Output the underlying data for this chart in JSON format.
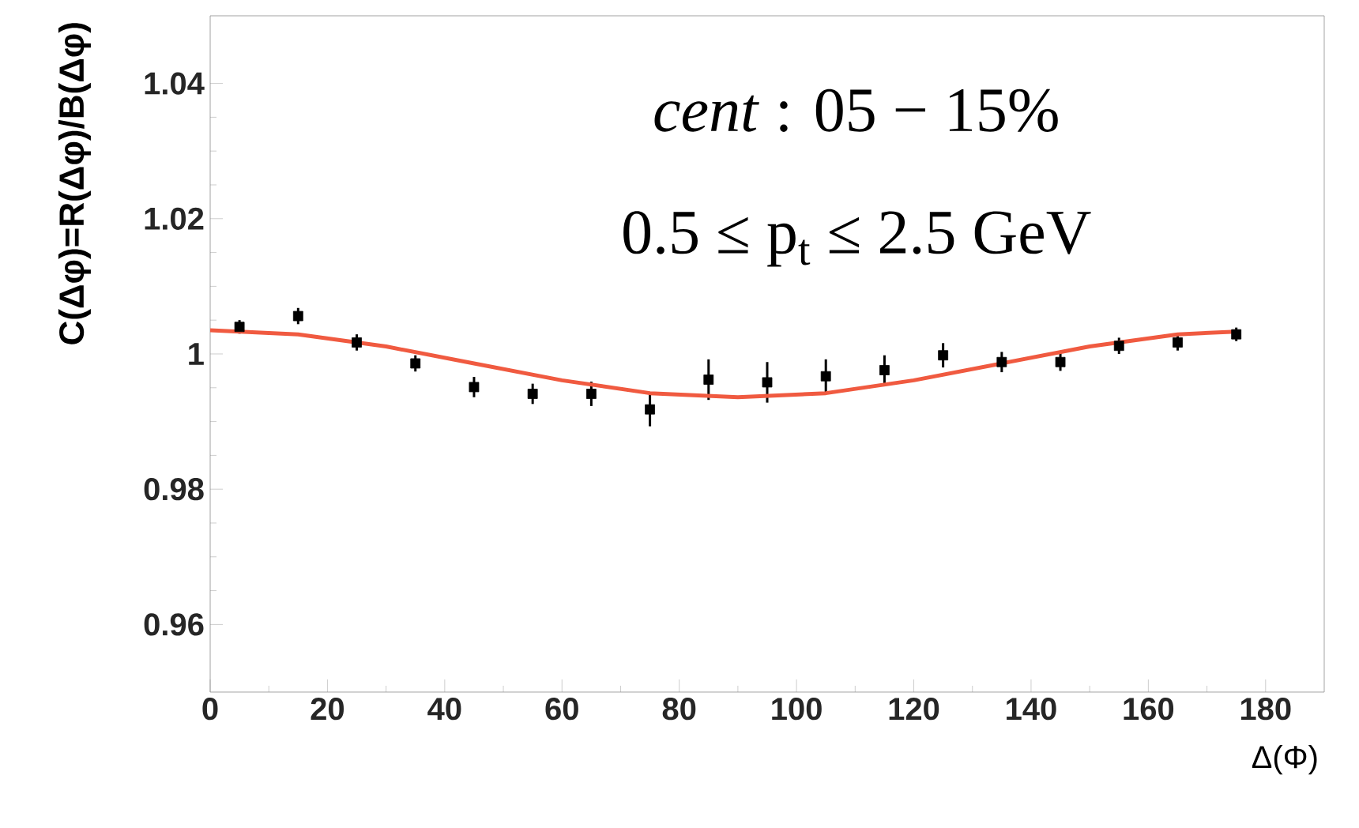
{
  "chart_data": {
    "type": "scatter",
    "xlabel": "Δ(Φ)",
    "ylabel": "C(Δφ)=R(Δφ)/B(Δφ)",
    "annotations": [
      "*cent* : 05 − 15%",
      "0.5 ≤ p$_{t}$ ≤ 2.5 GeV"
    ],
    "xlim": [
      0,
      190
    ],
    "xticks": [
      0,
      20,
      40,
      60,
      80,
      100,
      120,
      140,
      160,
      180
    ],
    "ylim": [
      0.95,
      1.05
    ],
    "yticks": [
      0.96,
      0.98,
      1,
      1.02,
      1.04
    ],
    "grid": false,
    "series": [
      {
        "color": "#000000",
        "marker": "square",
        "x": [
          5,
          15,
          25,
          35,
          45,
          55,
          65,
          75,
          85,
          95,
          105,
          115,
          125,
          135,
          145,
          155,
          165,
          175
        ],
        "values": [
          1.004,
          1.0056,
          1.0017,
          0.9986,
          0.9951,
          0.9941,
          0.9941,
          0.9918,
          0.9962,
          0.9958,
          0.9967,
          0.9976,
          0.9998,
          0.9988,
          0.9988,
          1.0012,
          1.0017,
          1.0029
        ],
        "errors": [
          0.001,
          0.0012,
          0.0012,
          0.0012,
          0.0015,
          0.0015,
          0.0018,
          0.0025,
          0.003,
          0.003,
          0.0025,
          0.0022,
          0.0018,
          0.0015,
          0.0013,
          0.0012,
          0.0012,
          0.001
        ]
      },
      {
        "type": "line",
        "color": "#f05a40",
        "line_style": "solid",
        "x": [
          0,
          15,
          30,
          45,
          60,
          75,
          90,
          105,
          120,
          135,
          150,
          165,
          175
        ],
        "values": [
          1.0035,
          1.0029,
          1.0011,
          0.9986,
          0.9961,
          0.9942,
          0.9936,
          0.9942,
          0.9961,
          0.9986,
          1.0011,
          1.0029,
          1.0033
        ]
      }
    ]
  }
}
